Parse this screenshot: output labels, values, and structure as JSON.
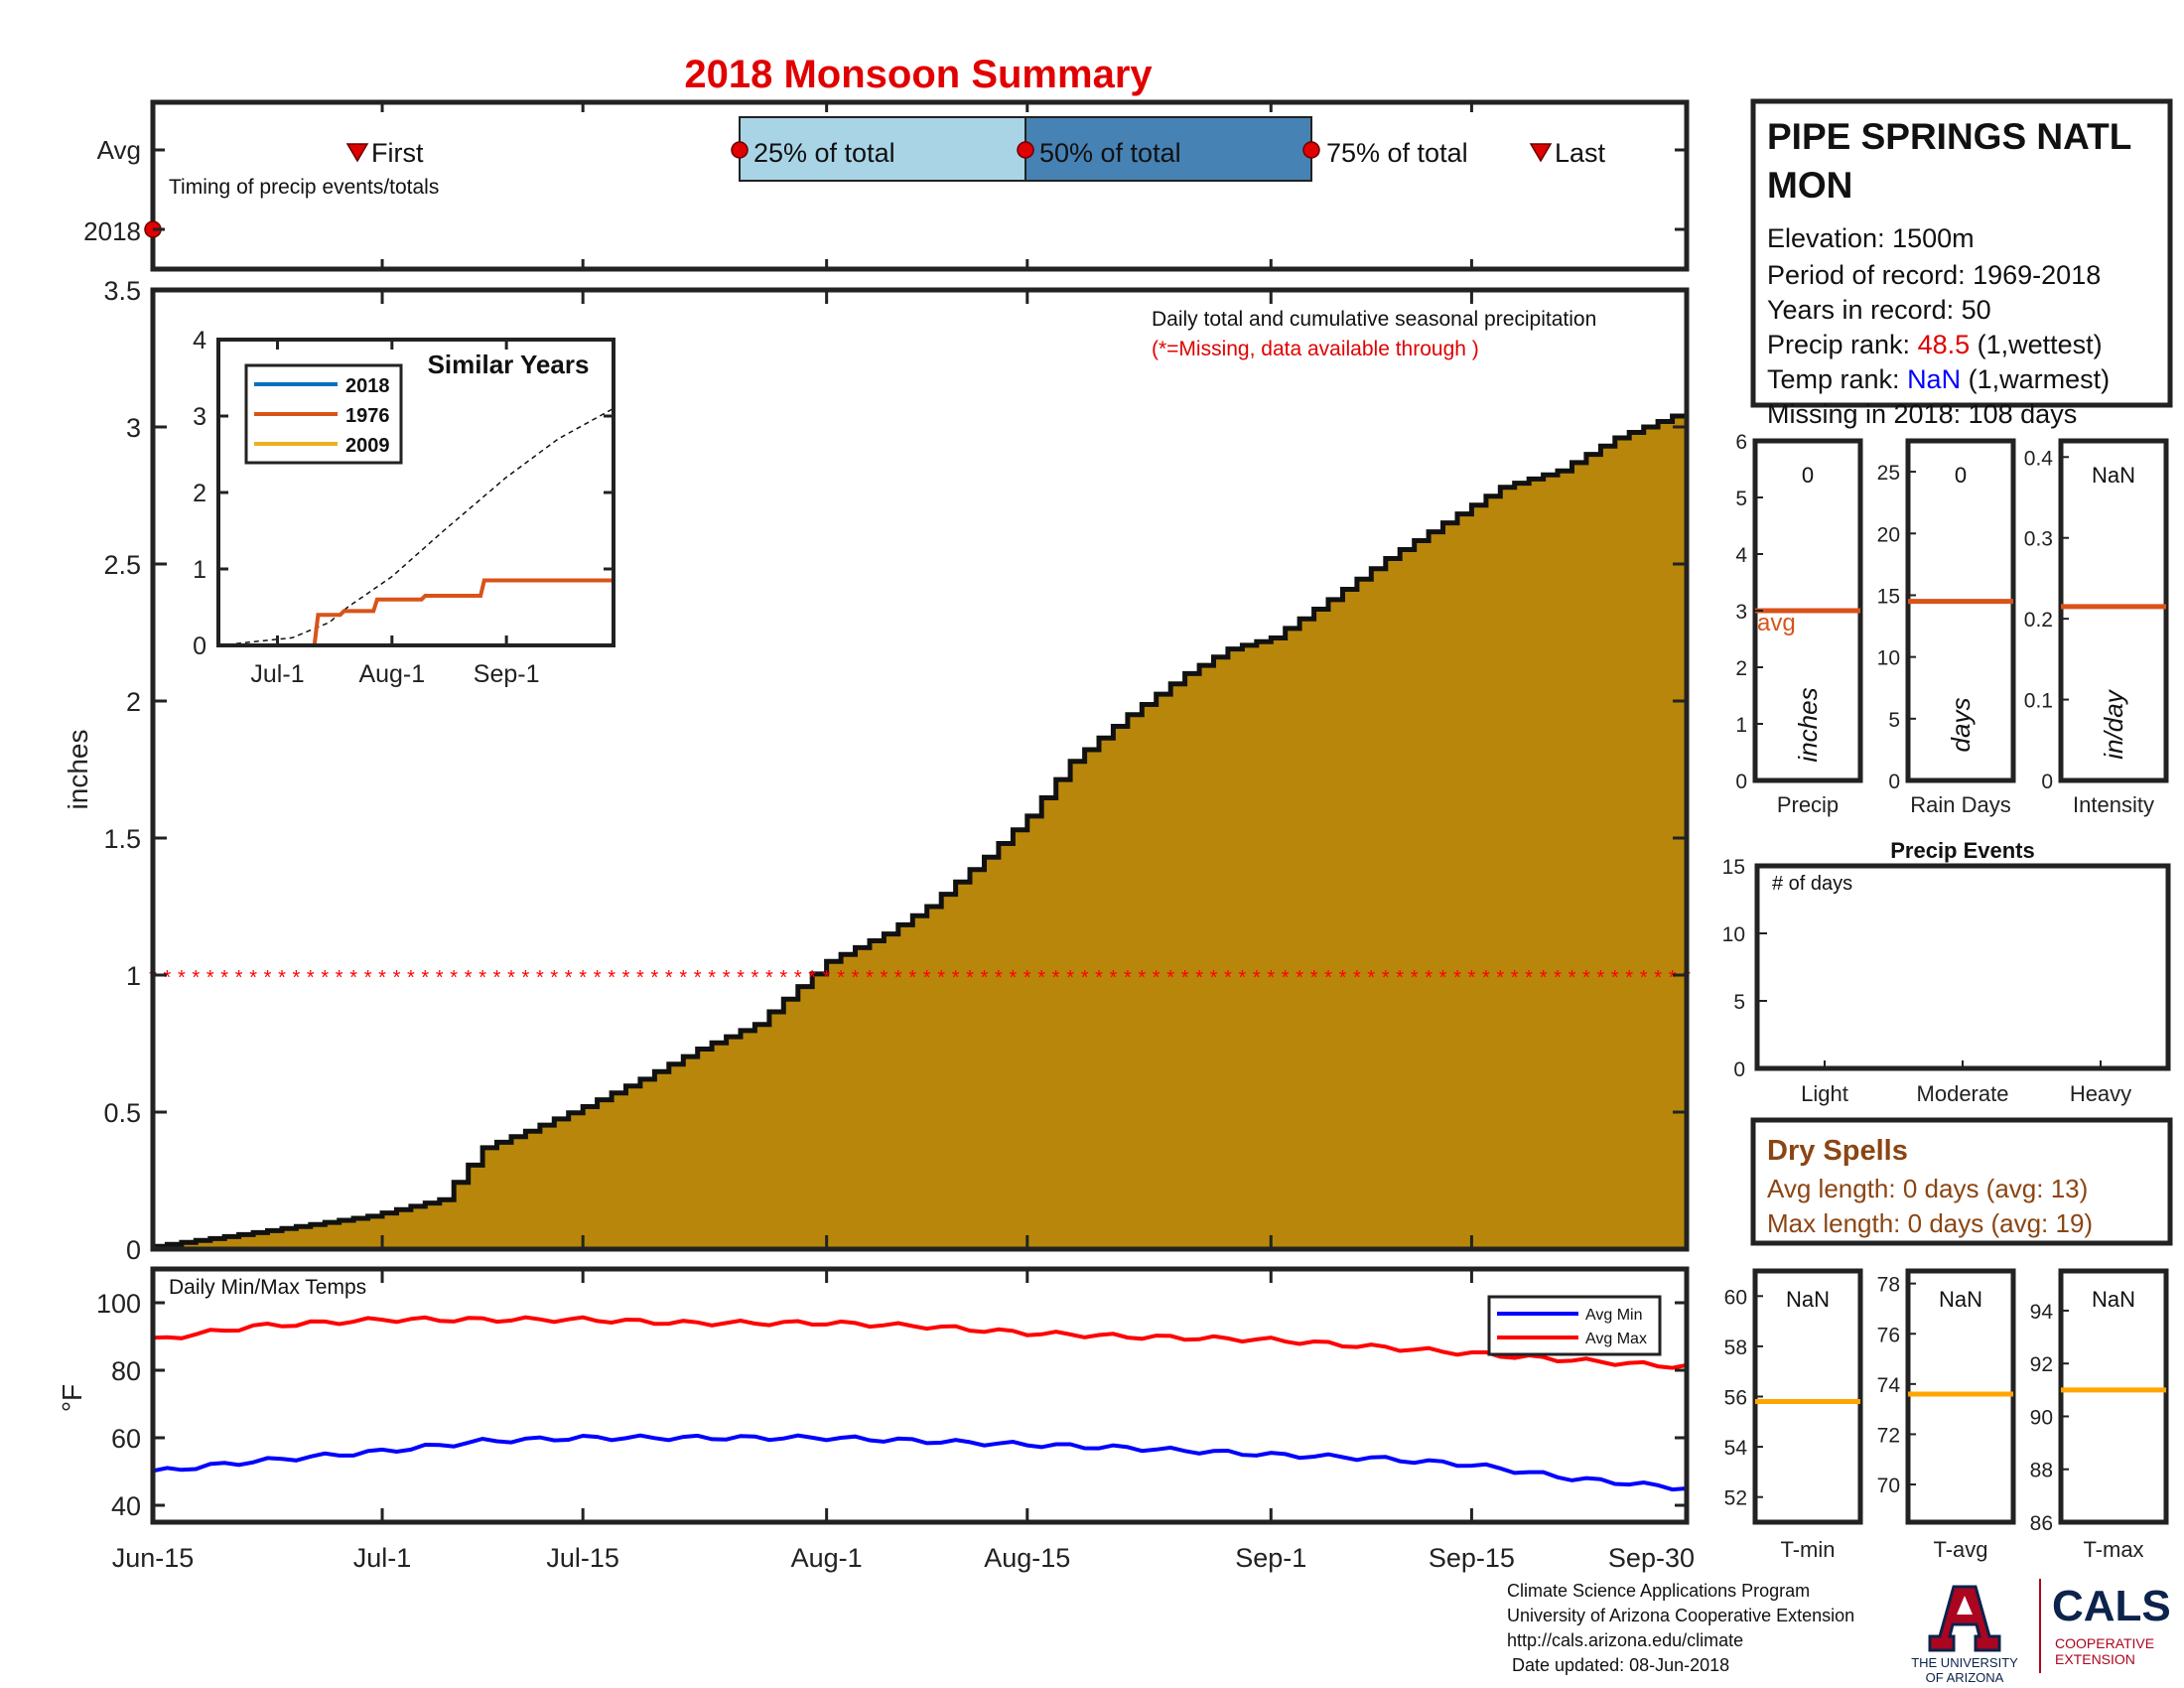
{
  "title": "2018 Monsoon Summary",
  "timing": {
    "y_labels": [
      "Avg",
      "2018"
    ],
    "caption": "Timing of precip events/totals",
    "first_label": "First",
    "last_label": "Last",
    "q25_label": "25% of total",
    "q50_label": "50% of total",
    "q75_label": "75% of total",
    "first_date": "2018-06-30",
    "q25_date": "2018-07-26",
    "q50_date": "2018-08-15",
    "q75_date": "2018-09-04",
    "last_date": "2018-09-20",
    "marker_2018_date": "2018-06-15",
    "colors": {
      "q25_box": "#a8d4e6",
      "q50_box": "#4682b4",
      "marker": "#e00000"
    }
  },
  "station": {
    "name_line1": "PIPE SPRINGS NATL",
    "name_line2": "MON",
    "elevation": "Elevation: 1500m",
    "period": "Period of record: 1969-2018",
    "years": "Years in record: 50",
    "precip_rank_label": "Precip rank: ",
    "precip_rank_value": "48.5",
    "precip_rank_suffix": " (1,wettest)",
    "temp_rank_label": "Temp rank: ",
    "temp_rank_value": "NaN",
    "temp_rank_suffix": " (1,warmest)",
    "missing": "Missing in 2018: 108 days"
  },
  "main_chart": {
    "note": "Daily total and cumulative seasonal precipitation",
    "missing_note": "(*=Missing, data available through )",
    "ylabel": "inches",
    "yticks": [
      "0",
      "0.5",
      "1",
      "1.5",
      "2",
      "2.5",
      "3",
      "3.5"
    ],
    "xticks": [
      "Jun-15",
      "Jul-1",
      "Jul-15",
      "Aug-1",
      "Aug-15",
      "Sep-1",
      "Sep-15",
      "Sep-30"
    ],
    "fill_color": "#b8860b",
    "missing_marker_color": "#ff0000"
  },
  "inset": {
    "title": "Similar Years",
    "yticks": [
      "0",
      "1",
      "2",
      "3",
      "4"
    ],
    "xticks": [
      "Jul-1",
      "Aug-1",
      "Sep-1"
    ],
    "legend": [
      {
        "name": "2018",
        "color": "#0072bd"
      },
      {
        "name": "1976",
        "color": "#d95319"
      },
      {
        "name": "2009",
        "color": "#edb120"
      }
    ]
  },
  "temps": {
    "label": "Daily Min/Max Temps",
    "ylabel": "°F",
    "yticks": [
      "40",
      "60",
      "80",
      "100"
    ],
    "legend_min": "Avg Min",
    "legend_max": "Avg Max",
    "min_color": "#0000ff",
    "max_color": "#ff0000"
  },
  "mini_precip": {
    "labels": [
      "Precip",
      "Rain Days",
      "Intensity"
    ],
    "values": [
      "0",
      "0",
      "NaN"
    ],
    "units": [
      "inches",
      "days",
      "in/day"
    ],
    "avg_label": "avg",
    "avg_values": [
      3,
      14.5,
      0.215
    ],
    "yticks": [
      [
        "0",
        "1",
        "2",
        "3",
        "4",
        "5",
        "6"
      ],
      [
        "0",
        "5",
        "10",
        "15",
        "20",
        "25"
      ],
      [
        "0",
        "0.1",
        "0.2",
        "0.3",
        "0.4"
      ]
    ],
    "avg_color": "#d95319"
  },
  "events": {
    "title": "Precip Events",
    "inner_label": "# of days",
    "yticks": [
      "0",
      "5",
      "10",
      "15"
    ],
    "categories": [
      "Light",
      "Moderate",
      "Heavy"
    ]
  },
  "dry_spells": {
    "title": "Dry Spells",
    "avg": "Avg length: 0 days (avg: 13)",
    "max": "Max length: 0 days (avg: 19)",
    "color": "#8b4513"
  },
  "mini_temps": {
    "labels": [
      "T-min",
      "T-avg",
      "T-max"
    ],
    "values": [
      "NaN",
      "NaN",
      "NaN"
    ],
    "yticks": [
      [
        "52",
        "54",
        "56",
        "58",
        "60"
      ],
      [
        "70",
        "72",
        "74",
        "76",
        "78"
      ],
      [
        "86",
        "88",
        "90",
        "92",
        "94"
      ]
    ],
    "avg_values": [
      55.8,
      73.6,
      91
    ],
    "avg_color": "#ffa500"
  },
  "footer": {
    "lines": [
      "Climate Science Applications Program",
      "University of Arizona Cooperative Extension",
      "http://cals.arizona.edu/climate",
      " Date updated: 08-Jun-2018"
    ],
    "ua_line1": "THE UNIVERSITY",
    "ua_line2": "OF ARIZONA",
    "cals": "CALS",
    "cals_sub1": "COOPERATIVE",
    "cals_sub2": "EXTENSION"
  },
  "chart_data": [
    {
      "type": "area",
      "title": "Daily total and cumulative seasonal precipitation",
      "ylabel": "inches",
      "ylim": [
        0,
        3.5
      ],
      "x": [
        "2018-06-15",
        "2018-06-22",
        "2018-06-30",
        "2018-07-05",
        "2018-07-08",
        "2018-07-11",
        "2018-07-15",
        "2018-07-19",
        "2018-07-23",
        "2018-07-27",
        "2018-08-01",
        "2018-08-05",
        "2018-08-08",
        "2018-08-12",
        "2018-08-15",
        "2018-08-18",
        "2018-08-22",
        "2018-08-26",
        "2018-08-29",
        "2018-09-01",
        "2018-09-05",
        "2018-09-09",
        "2018-09-13",
        "2018-09-17",
        "2018-09-21",
        "2018-09-25",
        "2018-09-30"
      ],
      "y": [
        0.01,
        0.06,
        0.12,
        0.18,
        0.37,
        0.43,
        0.52,
        0.62,
        0.73,
        0.82,
        1.05,
        1.15,
        1.25,
        1.43,
        1.58,
        1.78,
        1.95,
        2.1,
        2.19,
        2.23,
        2.37,
        2.52,
        2.65,
        2.78,
        2.84,
        2.96,
        3.06
      ],
      "missing_marker_y": 1
    },
    {
      "type": "line",
      "title": "Similar Years",
      "ylim": [
        0,
        4
      ],
      "x": [
        "2018-06-15",
        "2018-07-05",
        "2018-07-15",
        "2018-07-20",
        "2018-08-01",
        "2018-08-15",
        "2018-09-01",
        "2018-09-15",
        "2018-09-30"
      ],
      "series": [
        {
          "name": "2018",
          "values": [
            0,
            0,
            0,
            0,
            0,
            0,
            0,
            0,
            0
          ]
        },
        {
          "name": "1976",
          "values": [
            0,
            0,
            0.4,
            0.45,
            0.6,
            0.65,
            0.85,
            0.85,
            0.85
          ]
        },
        {
          "name": "2009",
          "values": [
            0,
            0,
            0,
            0,
            0,
            0,
            0,
            0,
            0
          ]
        },
        {
          "values": [
            0,
            0.1,
            0.3,
            0.5,
            0.9,
            1.5,
            2.2,
            2.7,
            3.1
          ]
        }
      ]
    },
    {
      "type": "line",
      "title": "Daily Min/Max Temps",
      "ylabel": "°F",
      "ylim": [
        35,
        110
      ],
      "x": [
        "2018-06-15",
        "2018-06-22",
        "2018-07-01",
        "2018-07-08",
        "2018-07-15",
        "2018-07-22",
        "2018-08-01",
        "2018-08-08",
        "2018-08-15",
        "2018-08-22",
        "2018-09-01",
        "2018-09-08",
        "2018-09-15",
        "2018-09-22",
        "2018-09-30"
      ],
      "series": [
        {
          "name": "Avg Min",
          "values": [
            50,
            53,
            56,
            59,
            60,
            60,
            60,
            59,
            58,
            57,
            55,
            54,
            52,
            48,
            45
          ]
        },
        {
          "name": "Avg Max",
          "values": [
            89,
            93,
            95,
            95,
            95,
            94,
            94,
            93,
            91,
            90,
            89,
            87,
            85,
            83,
            81
          ]
        }
      ]
    },
    {
      "type": "bar",
      "title": "Precip Events",
      "categories": [
        "Light",
        "Moderate",
        "Heavy"
      ],
      "values": [
        0,
        0,
        0
      ],
      "ylim": [
        0,
        15
      ]
    }
  ]
}
